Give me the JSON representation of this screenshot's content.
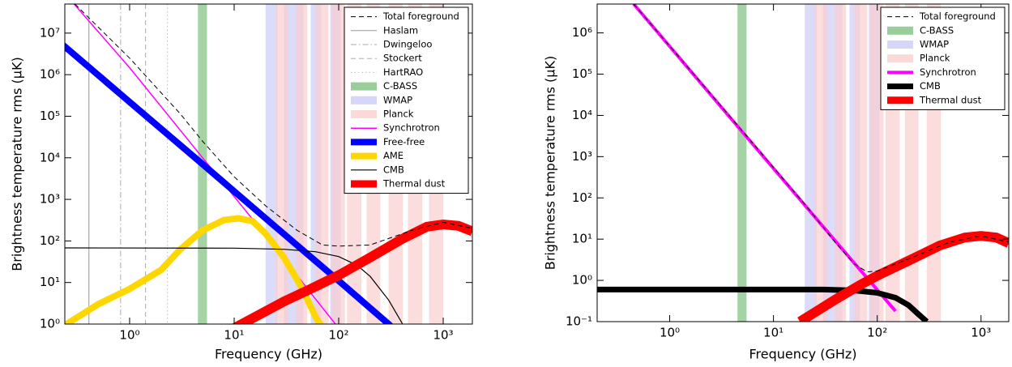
{
  "chart_data": [
    {
      "type": "line",
      "xscale": "log",
      "yscale": "log",
      "legend": "upper right",
      "xlabel": "Frequency (GHz)",
      "ylabel": "Brightness temperature rms (μK)",
      "xlim": [
        0.24,
        1900
      ],
      "ylim": [
        1,
        50000000
      ],
      "xticks": [
        {
          "value": 1,
          "label": "10⁰"
        },
        {
          "value": 10,
          "label": "10¹"
        },
        {
          "value": 100,
          "label": "10²"
        },
        {
          "value": 1000,
          "label": "10³"
        }
      ],
      "yticks": [
        {
          "value": 1,
          "label": "10⁰"
        },
        {
          "value": 10,
          "label": "10¹"
        },
        {
          "value": 100,
          "label": "10²"
        },
        {
          "value": 1000,
          "label": "10³"
        },
        {
          "value": 10000,
          "label": "10⁴"
        },
        {
          "value": 100000,
          "label": "10⁵"
        },
        {
          "value": 1000000,
          "label": "10⁶"
        },
        {
          "value": 10000000,
          "label": "10⁷"
        }
      ],
      "total": {
        "name": "Total foreground",
        "color": "#000000",
        "dash": "dashed",
        "width": 1,
        "x": [
          0.3,
          1,
          3,
          5,
          10,
          20,
          40,
          70,
          100,
          200,
          500,
          1000,
          1900
        ],
        "values": [
          50000000,
          2500000,
          120000,
          25000,
          3500,
          700,
          180,
          80,
          75,
          80,
          180,
          280,
          200
        ]
      },
      "vlines": [
        {
          "name": "Haslam",
          "color": "#999999",
          "dash": "solid",
          "x": 0.408
        },
        {
          "name": "Dwingeloo",
          "color": "#aaaaaa",
          "dash": "dashdot",
          "x": 0.82
        },
        {
          "name": "Stockert",
          "color": "#aaaaaa",
          "dash": "dashed",
          "x": 1.42
        },
        {
          "name": "HartRAO",
          "color": "#bbbbbb",
          "dash": "dotted",
          "x": 2.3
        }
      ],
      "bands": [
        {
          "name": "C-BASS",
          "color": "#7fc07f",
          "ranges": [
            [
              4.5,
              5.5
            ]
          ]
        },
        {
          "name": "WMAP",
          "color": "#ccccf8",
          "ranges": [
            [
              20,
              26
            ],
            [
              30,
              37
            ],
            [
              37,
              46
            ],
            [
              54,
              68
            ],
            [
              83,
              105
            ]
          ]
        },
        {
          "name": "Planck",
          "color": "#fbcfcf",
          "ranges": [
            [
              25,
              33
            ],
            [
              39,
              50
            ],
            [
              60,
              80
            ],
            [
              85,
              115
            ],
            [
              120,
              165
            ],
            [
              185,
              250
            ],
            [
              300,
              410
            ],
            [
              460,
              630
            ],
            [
              730,
              1000
            ]
          ]
        }
      ],
      "series": [
        {
          "name": "Synchrotron",
          "color": "#ff00ff",
          "width": 1.5,
          "x": [
            0.24,
            1,
            5,
            20,
            60,
            100
          ],
          "values": [
            90000000,
            1470000,
            10000,
            137,
            4,
            0.8
          ]
        },
        {
          "name": "Free-free",
          "color": "#0000ff",
          "width": 8,
          "x": [
            0.2,
            1,
            5,
            20,
            100,
            300,
            400
          ],
          "values": [
            7000000,
            220000,
            7000,
            350,
            11,
            1,
            0.5
          ]
        },
        {
          "name": "AME",
          "color": "#ffd700",
          "width": 8,
          "x": [
            0.2,
            0.5,
            1,
            2,
            3,
            5,
            8,
            11,
            15,
            20,
            30,
            45,
            60,
            70
          ],
          "values": [
            0.7,
            3,
            7,
            20,
            60,
            180,
            320,
            350,
            300,
            150,
            40,
            7,
            1.5,
            0.8
          ]
        },
        {
          "name": "CMB",
          "color": "#000000",
          "width": 1.2,
          "x": [
            0.2,
            10,
            30,
            60,
            100,
            150,
            200,
            300,
            400,
            450
          ],
          "values": [
            68,
            67,
            63,
            55,
            42,
            26,
            14,
            3.8,
            1.1,
            0.6
          ]
        },
        {
          "name": "Thermal dust",
          "color": "#ff0000",
          "width": 12,
          "x": [
            10,
            30,
            60,
            100,
            200,
            400,
            700,
            1000,
            1400,
            1900
          ],
          "values": [
            0.8,
            3.5,
            8,
            15,
            40,
            110,
            220,
            250,
            230,
            170
          ]
        }
      ]
    },
    {
      "type": "line",
      "xscale": "log",
      "yscale": "log",
      "legend": "upper right",
      "xlabel": "Frequency (GHz)",
      "ylabel": "Brightness temperature rms (μK)",
      "xlim": [
        0.2,
        1850
      ],
      "ylim": [
        0.1,
        5000000
      ],
      "xticks": [
        {
          "value": 1,
          "label": "10⁰"
        },
        {
          "value": 10,
          "label": "10¹"
        },
        {
          "value": 100,
          "label": "10²"
        },
        {
          "value": 1000,
          "label": "10³"
        }
      ],
      "yticks": [
        {
          "value": 0.1,
          "label": "10⁻¹"
        },
        {
          "value": 1,
          "label": "10⁰"
        },
        {
          "value": 10,
          "label": "10¹"
        },
        {
          "value": 100,
          "label": "10²"
        },
        {
          "value": 1000,
          "label": "10³"
        },
        {
          "value": 10000,
          "label": "10⁴"
        },
        {
          "value": 100000,
          "label": "10⁵"
        },
        {
          "value": 1000000,
          "label": "10⁶"
        }
      ],
      "total": {
        "name": "Total foreground",
        "color": "#000000",
        "dash": "dashed",
        "width": 1,
        "x": [
          0.45,
          5,
          20,
          40,
          60,
          80,
          100,
          200,
          500,
          1000,
          1850
        ],
        "values": [
          5000000,
          4200,
          70,
          8,
          2.5,
          1.6,
          1.7,
          3.3,
          8.5,
          12,
          8.5
        ]
      },
      "vlines": [],
      "bands": [
        {
          "name": "C-BASS",
          "color": "#7fc07f",
          "ranges": [
            [
              4.5,
              5.5
            ]
          ]
        },
        {
          "name": "WMAP",
          "color": "#ccccf8",
          "ranges": [
            [
              20,
              26
            ],
            [
              30,
              37
            ],
            [
              37,
              46
            ],
            [
              54,
              68
            ],
            [
              83,
              105
            ]
          ]
        },
        {
          "name": "Planck",
          "color": "#fbcfcf",
          "ranges": [
            [
              25,
              33
            ],
            [
              39,
              50
            ],
            [
              60,
              80
            ],
            [
              85,
              115
            ],
            [
              120,
              165
            ],
            [
              185,
              250
            ],
            [
              300,
              410
            ]
          ]
        }
      ],
      "series": [
        {
          "name": "Synchrotron",
          "color": "#ff00ff",
          "width": 4,
          "x": [
            0.45,
            5,
            50,
            150
          ],
          "values": [
            5000000,
            4000,
            4.5,
            0.18
          ]
        },
        {
          "name": "CMB",
          "color": "#000000",
          "width": 7,
          "x": [
            0.2,
            30,
            60,
            100,
            150,
            200,
            250,
            300
          ],
          "values": [
            0.6,
            0.6,
            0.57,
            0.5,
            0.38,
            0.25,
            0.15,
            0.1
          ]
        },
        {
          "name": "Thermal dust",
          "color": "#ff0000",
          "width": 12,
          "x": [
            18,
            40,
            70,
            100,
            200,
            400,
            700,
            1000,
            1400,
            1850
          ],
          "values": [
            0.1,
            0.35,
            0.8,
            1.3,
            3,
            7,
            11,
            12,
            11,
            8
          ]
        }
      ]
    }
  ]
}
